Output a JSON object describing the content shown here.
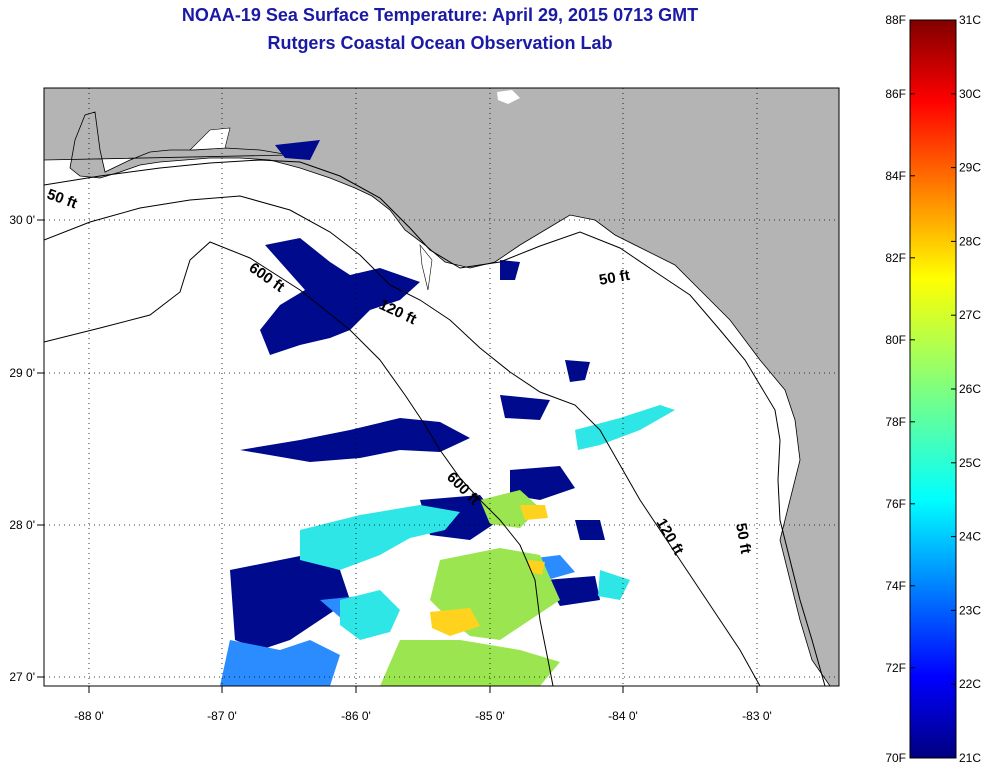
{
  "title": {
    "line1": "NOAA-19 Sea Surface Temperature:  April 29, 2015 0713 GMT",
    "line2": "Rutgers Coastal Ocean Observation Lab"
  },
  "axes": {
    "lon_ticks": [
      "-88 0'",
      "-87 0'",
      "-86 0'",
      "-85 0'",
      "-84 0'",
      "-83 0'"
    ],
    "lat_ticks": [
      "30 0'",
      "29 0'",
      "28 0'",
      "27 0'"
    ]
  },
  "contours": [
    {
      "name": "isobath-50ft-west",
      "label": "50 ft"
    },
    {
      "name": "isobath-600ft-north",
      "label": "600 ft"
    },
    {
      "name": "isobath-120ft-north",
      "label": "120 ft"
    },
    {
      "name": "isobath-50ft-east",
      "label": "50 ft"
    },
    {
      "name": "isobath-600ft-south",
      "label": "600 ft"
    },
    {
      "name": "isobath-120ft-south",
      "label": "120 ft"
    },
    {
      "name": "isobath-50ft-south",
      "label": "50 ft"
    }
  ],
  "colorbar": {
    "fahrenheit": [
      "88F",
      "86F",
      "84F",
      "82F",
      "80F",
      "78F",
      "76F",
      "74F",
      "72F",
      "70F"
    ],
    "celsius": [
      "31C",
      "30C",
      "29C",
      "28C",
      "27C",
      "26C",
      "25C",
      "24C",
      "23C",
      "22C",
      "21C"
    ]
  },
  "colors": {
    "title": "#1a1aa6",
    "land": "#b4b4b4",
    "ocean_nodata": "#ffffff",
    "cold": "#000a8c",
    "cool": "#2a8cff",
    "mid": "#2ee6e6",
    "warm": "#9be650",
    "hot": "#ffd21e"
  }
}
